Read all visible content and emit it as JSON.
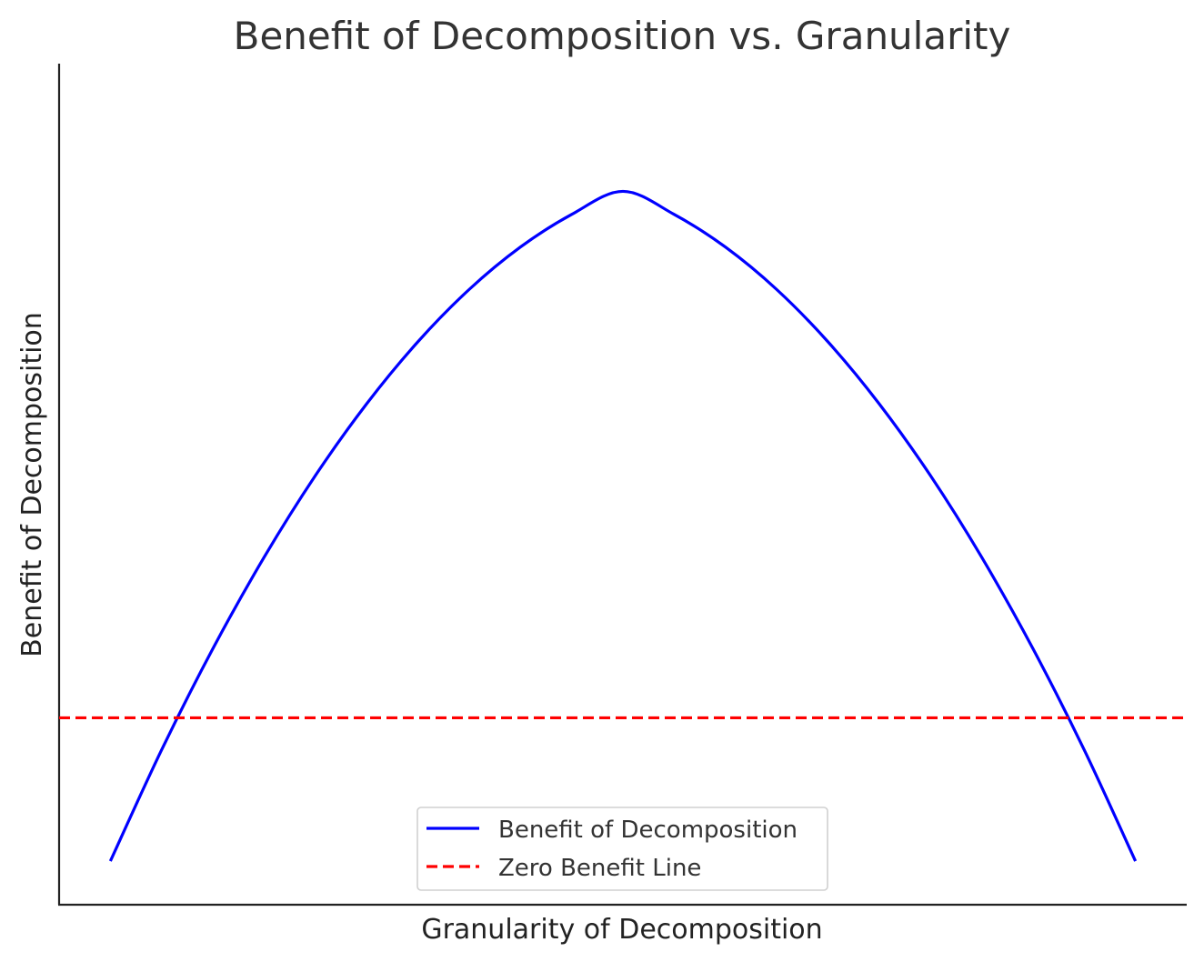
{
  "chart_data": {
    "type": "line",
    "title": "Benefit of Decomposition vs. Granularity",
    "xlabel": "Granularity of Decomposition",
    "ylabel": "Benefit of Decomposition",
    "xlim": [
      -0.05,
      1.05
    ],
    "ylim": [
      -0.3,
      1.05
    ],
    "grid": false,
    "legend_position": "bottom-center",
    "ticks_shown": false,
    "series": [
      {
        "name": "Benefit of Decomposition",
        "color": "#0000ff",
        "style": "solid",
        "x": [
          0,
          0.05,
          0.1,
          0.15,
          0.2,
          0.25,
          0.3,
          0.35,
          0.4,
          0.45,
          0.5,
          0.55,
          0.6,
          0.65,
          0.7,
          0.75,
          0.8,
          0.85,
          0.9,
          0.95,
          1.0
        ],
        "y": [
          -0.23,
          -0.0515,
          0.111,
          0.2577,
          0.3888,
          0.504,
          0.6036,
          0.6875,
          0.7556,
          0.808,
          0.845,
          0.808,
          0.7556,
          0.6875,
          0.6036,
          0.504,
          0.3888,
          0.2577,
          0.111,
          -0.0515,
          -0.23
        ]
      },
      {
        "name": "Zero Benefit Line",
        "color": "#ff0000",
        "style": "dashed",
        "y_const": 0
      }
    ]
  }
}
